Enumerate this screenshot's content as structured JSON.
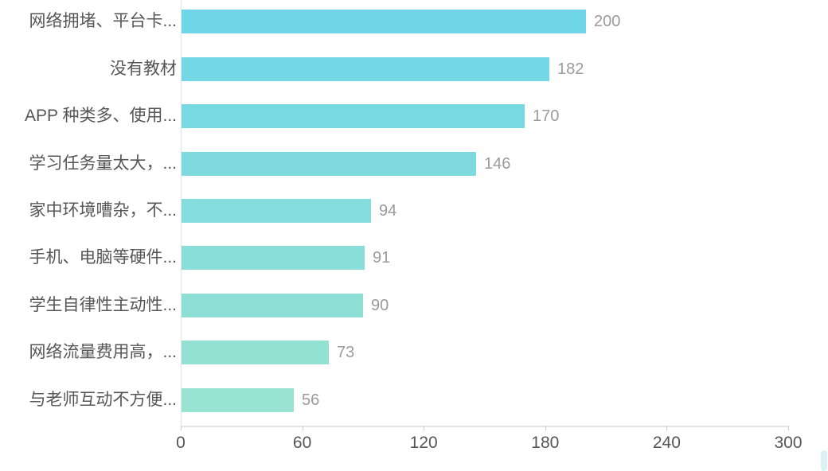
{
  "chart_data": {
    "type": "bar",
    "orientation": "horizontal",
    "title": "",
    "xlabel": "",
    "ylabel": "",
    "categories": [
      "网络拥堵、平台卡...",
      "没有教材",
      "APP 种类多、使用...",
      "学习任务量太大，...",
      "家中环境嘈杂，不...",
      "手机、电脑等硬件...",
      "学生自律性主动性...",
      "网络流量费用高，...",
      "与老师互动不方便..."
    ],
    "values": [
      200,
      182,
      170,
      146,
      94,
      91,
      90,
      73,
      56
    ],
    "xlim": [
      0,
      300
    ],
    "x_ticks": [
      0,
      60,
      120,
      180,
      240,
      300
    ],
    "grid": false,
    "legend": false,
    "bar_colors": [
      "#6fd5e9",
      "#74d7e6",
      "#79d9e3",
      "#7edadf",
      "#84dcdc",
      "#89ded9",
      "#8ee0d6",
      "#93e1d2",
      "#98e3cf"
    ],
    "value_label_position": "right-of-bar"
  },
  "style": {
    "background": "#ffffff",
    "axis_line_color": "#e5e5e5",
    "tick_mark_color": "#cccccc",
    "category_label_color": "#565656",
    "value_label_color": "#9b9b9b",
    "tick_label_color": "#565656",
    "scrollbar_fragment_color": "#a9e2ec"
  }
}
